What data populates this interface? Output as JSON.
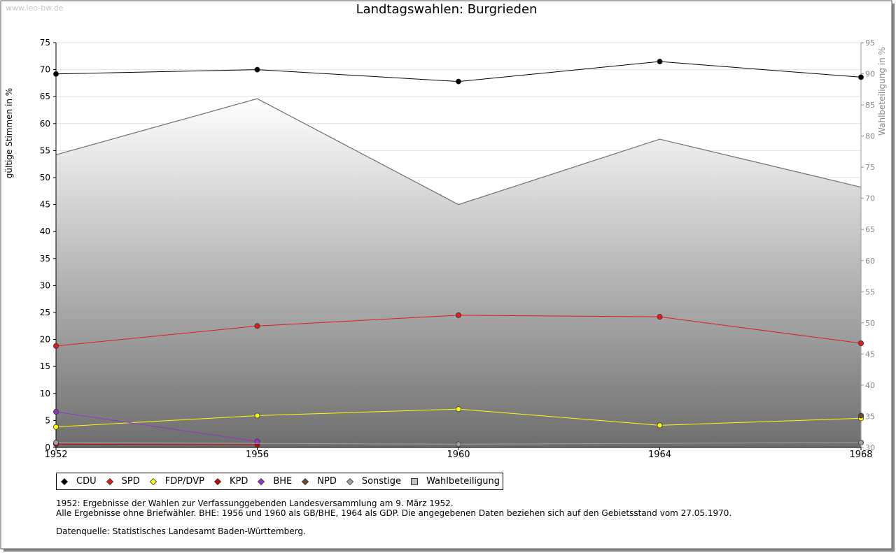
{
  "watermark": "www.leo-bw.de",
  "title": "Landtagswahlen: Burgrieden",
  "notes": {
    "line1": "1952: Ergebnisse der Wahlen zur Verfassunggebenden Landesversammlung am 9. März 1952.",
    "line2": "Alle Ergebnisse ohne Briefwähler. BHE: 1956 und 1960 als GB/BHE, 1964 als GDP. Die angegebenen Daten beziehen sich auf den Gebietsstand vom 27.05.1970.",
    "line3": "Datenquelle: Statistisches Landesamt Baden-Württemberg."
  },
  "chart_data": {
    "type": "line",
    "title": "Landtagswahlen: Burgrieden",
    "xlabel": "",
    "ylabel": "gültige Stimmen in %",
    "y2label": "Wahlbeteiligung in %",
    "x": [
      "1952",
      "1956",
      "1960",
      "1964",
      "1968"
    ],
    "ylim": [
      0,
      75
    ],
    "yticks": [
      0,
      5,
      10,
      15,
      20,
      25,
      30,
      35,
      40,
      45,
      50,
      55,
      60,
      65,
      70,
      75
    ],
    "y2lim": [
      30,
      95
    ],
    "y2ticks": [
      30,
      35,
      40,
      45,
      50,
      55,
      60,
      65,
      70,
      75,
      80,
      85,
      90,
      95
    ],
    "grid": true,
    "legend_position": "bottom",
    "series": [
      {
        "name": "CDU",
        "color": "#000000",
        "values": [
          69.2,
          70.0,
          67.8,
          71.5,
          68.6
        ]
      },
      {
        "name": "SPD",
        "color": "#e41a1c",
        "values": [
          18.8,
          22.5,
          24.5,
          24.2,
          19.3
        ]
      },
      {
        "name": "FDP/DVP",
        "color": "#ffff00",
        "values": [
          3.8,
          5.9,
          7.1,
          4.1,
          5.4
        ]
      },
      {
        "name": "KPD",
        "color": "#cc0000",
        "values": [
          0.6,
          0.5,
          null,
          null,
          null
        ]
      },
      {
        "name": "BHE",
        "color": "#9933cc",
        "values": [
          6.6,
          1.1,
          null,
          null,
          null
        ]
      },
      {
        "name": "NPD",
        "color": "#6b4a2b",
        "values": [
          null,
          null,
          null,
          null,
          5.9
        ]
      },
      {
        "name": "Sonstige",
        "color": "#a0a0a0",
        "values": [
          0.9,
          null,
          0.6,
          null,
          0.9
        ]
      },
      {
        "name": "Wahlbeteiligung",
        "color": "#c0c0c0",
        "axis": "right",
        "type": "area",
        "values": [
          77.0,
          86.0,
          69.0,
          79.5,
          71.8
        ]
      }
    ]
  }
}
